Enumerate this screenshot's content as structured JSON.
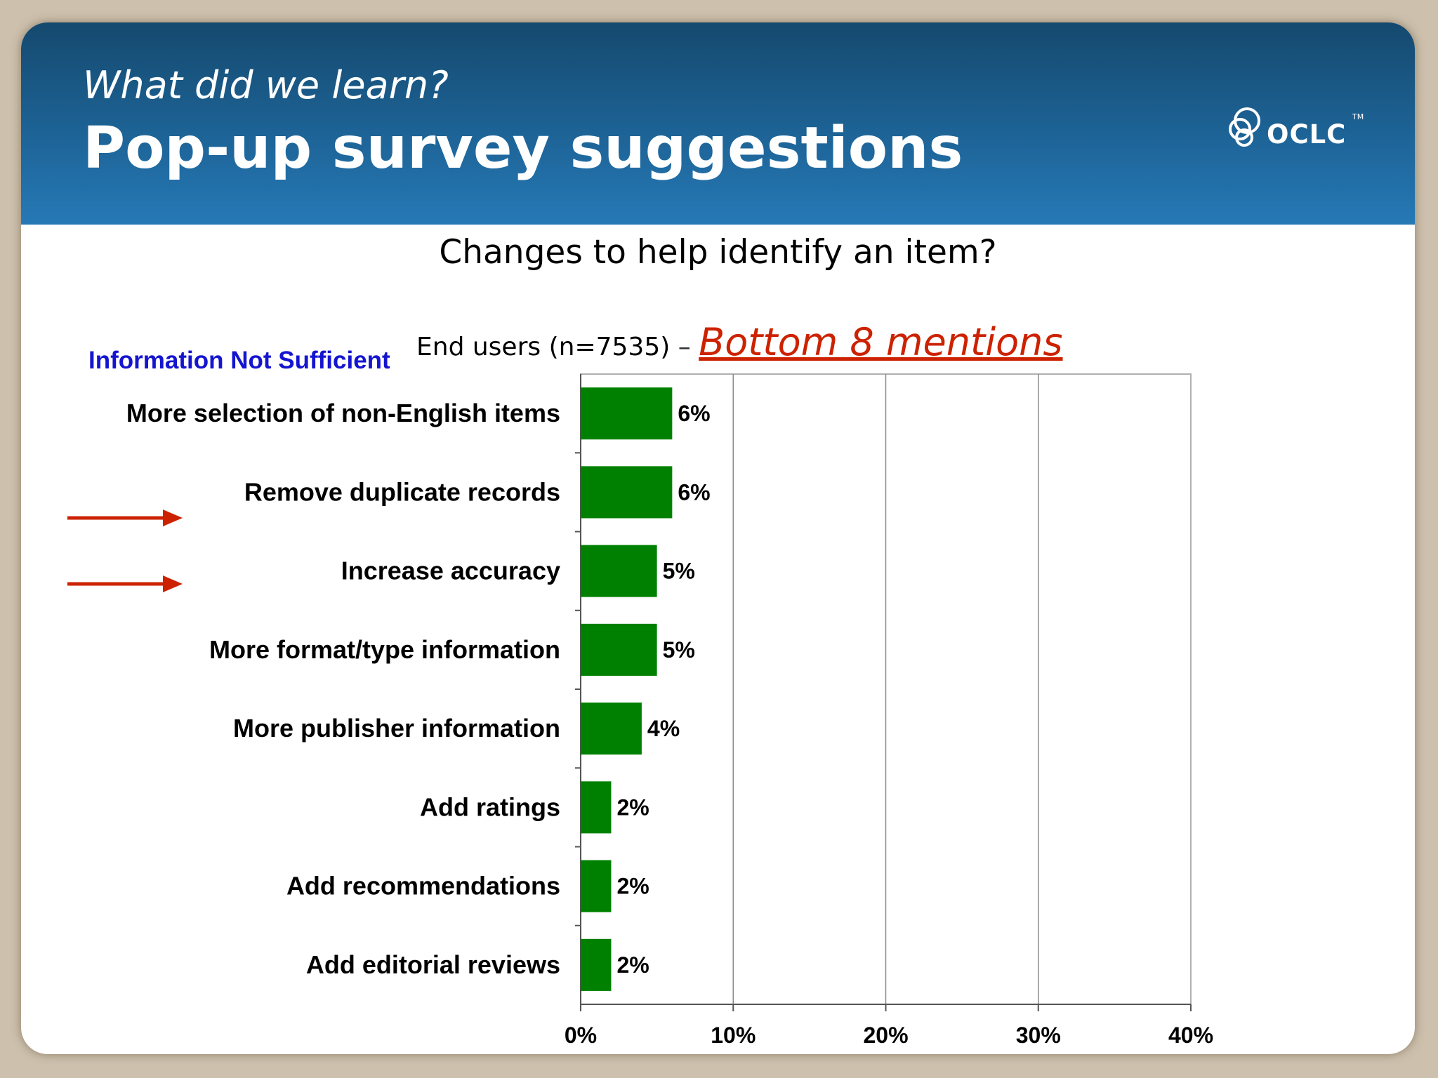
{
  "header": {
    "kicker": "What did we learn?",
    "title": "Pop-up survey suggestions",
    "logo_text": "OCLC",
    "logo_tm": "TM"
  },
  "question": "Changes to help identify an item?",
  "subtitle": {
    "prefix": "End users (n=7535)",
    "dash": " – ",
    "highlight": "Bottom 8 mentions"
  },
  "category_heading": "Information Not Sufficient",
  "colors": {
    "header_dark": "#15496e",
    "header_light": "#2679b6",
    "bar": "#008000",
    "highlight_red": "#cc2200",
    "heading_blue": "#1515d0",
    "arrow_red": "#cc2200"
  },
  "highlighted_categories": [
    "Remove duplicate records",
    "Increase accuracy"
  ],
  "chart_data": {
    "type": "bar",
    "orientation": "horizontal",
    "categories": [
      "More selection of non-English items",
      "Remove duplicate records",
      "Increase accuracy",
      "More format/type information",
      "More publisher information",
      "Add ratings",
      "Add recommendations",
      "Add editorial reviews"
    ],
    "values": [
      6,
      6,
      5,
      5,
      4,
      2,
      2,
      2
    ],
    "data_labels": [
      "6%",
      "6%",
      "5%",
      "5%",
      "4%",
      "2%",
      "2%",
      "2%"
    ],
    "x_ticks": [
      0,
      10,
      20,
      30,
      40
    ],
    "x_tick_labels": [
      "0%",
      "10%",
      "20%",
      "30%",
      "40%"
    ],
    "xlim": [
      0,
      40
    ],
    "grid": true
  }
}
